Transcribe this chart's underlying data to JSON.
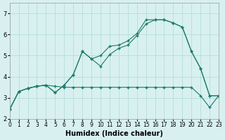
{
  "xlabel": "Humidex (Indice chaleur)",
  "ylabel": "",
  "xlim": [
    0,
    23
  ],
  "ylim": [
    2,
    7.5
  ],
  "xticks": [
    0,
    1,
    2,
    3,
    4,
    5,
    6,
    7,
    8,
    9,
    10,
    11,
    12,
    13,
    14,
    15,
    16,
    17,
    18,
    19,
    20,
    21,
    22,
    23
  ],
  "yticks": [
    2,
    3,
    4,
    5,
    6,
    7
  ],
  "bg_color": "#d8f0f0",
  "grid_color": "#b0d8d8",
  "line_color": "#1a7a6a",
  "curve1_x": [
    0,
    1,
    2,
    3,
    4,
    5,
    6,
    7,
    8,
    9,
    10,
    11,
    12,
    13,
    14,
    15,
    16,
    17,
    18,
    19,
    20,
    21,
    22,
    23
  ],
  "curve1_y": [
    2.45,
    3.3,
    3.45,
    3.55,
    3.6,
    3.55,
    3.5,
    3.5,
    3.5,
    3.5,
    3.5,
    3.5,
    3.5,
    3.5,
    3.5,
    3.5,
    3.5,
    3.5,
    3.5,
    3.5,
    3.5,
    3.1,
    2.55,
    3.1
  ],
  "curve2_x": [
    0,
    1,
    2,
    3,
    4,
    5,
    6,
    7,
    8,
    9,
    10,
    11,
    12,
    13,
    14,
    15,
    16,
    17,
    18,
    19,
    20,
    21,
    22,
    23
  ],
  "curve2_y": [
    2.45,
    3.3,
    3.45,
    3.55,
    3.6,
    3.25,
    3.6,
    4.1,
    5.2,
    4.85,
    4.5,
    5.05,
    5.35,
    5.5,
    5.95,
    6.5,
    6.7,
    6.7,
    6.55,
    6.35,
    5.2,
    4.4,
    3.1,
    3.1
  ],
  "curve3_x": [
    0,
    1,
    2,
    3,
    4,
    5,
    6,
    7,
    8,
    9,
    10,
    11,
    12,
    13,
    14,
    15,
    16,
    17,
    18,
    19,
    20,
    21,
    22,
    23
  ],
  "curve3_y": [
    2.45,
    3.3,
    3.45,
    3.55,
    3.6,
    3.25,
    3.6,
    4.1,
    5.2,
    4.85,
    5.0,
    5.45,
    5.5,
    5.7,
    6.05,
    6.7,
    6.7,
    6.7,
    6.55,
    6.35,
    5.2,
    4.4,
    3.1,
    3.1
  ]
}
